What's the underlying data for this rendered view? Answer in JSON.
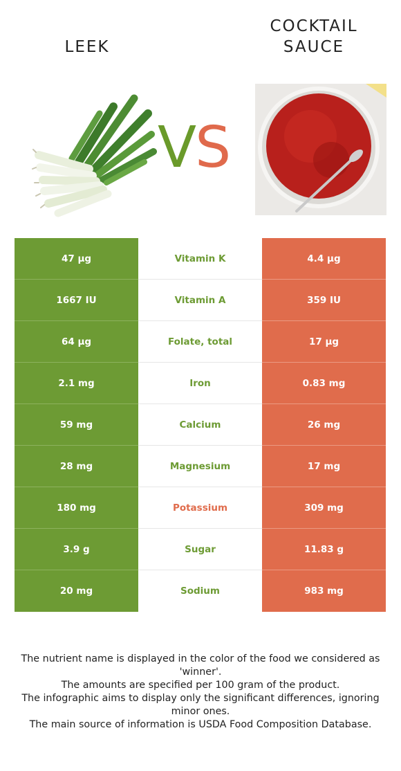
{
  "header": {
    "left_title": "LEEK",
    "right_title_line1": "COCKTAIL",
    "right_title_line2": "SAUCE",
    "vs_v": "V",
    "vs_s": "S"
  },
  "colors": {
    "leek": "#6d9b34",
    "cocktail_sauce": "#e06c4c"
  },
  "nutrients": [
    {
      "name": "Vitamin K",
      "left": "47 µg",
      "right": "4.4 µg",
      "winner": "leek"
    },
    {
      "name": "Vitamin A",
      "left": "1667 IU",
      "right": "359 IU",
      "winner": "leek"
    },
    {
      "name": "Folate, total",
      "left": "64 µg",
      "right": "17 µg",
      "winner": "leek"
    },
    {
      "name": "Iron",
      "left": "2.1 mg",
      "right": "0.83 mg",
      "winner": "leek"
    },
    {
      "name": "Calcium",
      "left": "59 mg",
      "right": "26 mg",
      "winner": "leek"
    },
    {
      "name": "Magnesium",
      "left": "28 mg",
      "right": "17 mg",
      "winner": "leek"
    },
    {
      "name": "Potassium",
      "left": "180 mg",
      "right": "309 mg",
      "winner": "cocktail_sauce"
    },
    {
      "name": "Sugar",
      "left": "3.9 g",
      "right": "11.83 g",
      "winner": "leek"
    },
    {
      "name": "Sodium",
      "left": "20 mg",
      "right": "983 mg",
      "winner": "leek"
    }
  ],
  "footnote": {
    "line1": "The nutrient name is displayed in the color of the food we considered as 'winner'.",
    "line2": "The amounts are specified per 100 gram of the product.",
    "line3": "The infographic aims to display only the significant differences, ignoring minor ones.",
    "line4": "The main source of information is USDA Food Composition Database."
  }
}
